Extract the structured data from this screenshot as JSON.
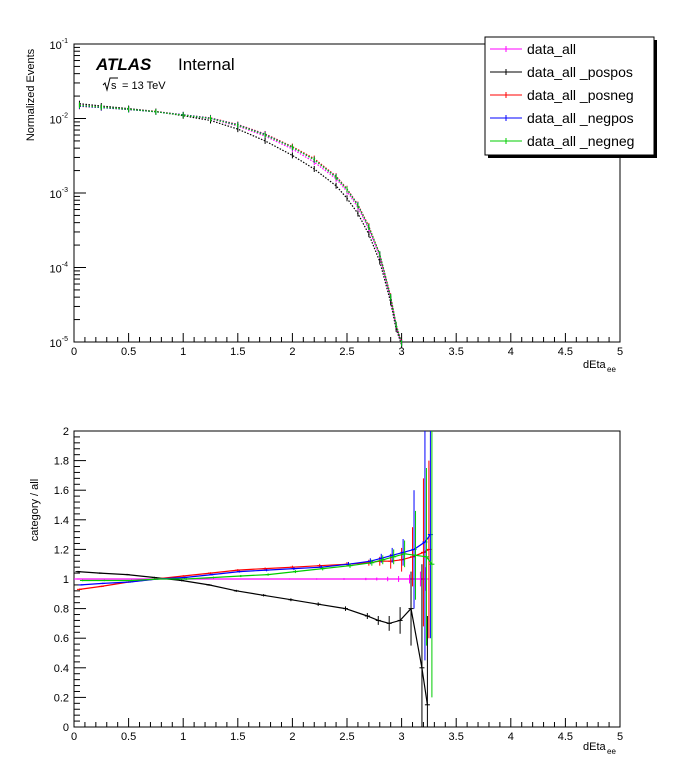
{
  "chart_data": [
    {
      "type": "scatter",
      "xlabel": "dEta",
      "xlabel_sub": "ee",
      "ylabel": "Normalized Events",
      "xlim": [
        0,
        5
      ],
      "ylim": [
        1e-05,
        0.1
      ],
      "yscale": "log",
      "x_ticks": [
        "0",
        "0.5",
        "1",
        "1.5",
        "2",
        "2.5",
        "3",
        "3.5",
        "4",
        "4.5",
        "5"
      ],
      "y_ticks": [
        {
          "base": "10",
          "exp": "-5",
          "value": 1e-05
        },
        {
          "base": "10",
          "exp": "-4",
          "value": 0.0001
        },
        {
          "base": "10",
          "exp": "-3",
          "value": 0.001
        },
        {
          "base": "10",
          "exp": "-2",
          "value": 0.01
        },
        {
          "base": "10",
          "exp": "-1",
          "value": 0.1
        }
      ],
      "annotation": {
        "experiment": "ATLAS",
        "status": "Internal",
        "energy_prefix": "s",
        "energy": "= 13 TeV"
      },
      "legend_position": "top-right",
      "x": [
        0.05,
        0.25,
        0.5,
        0.75,
        1.0,
        1.25,
        1.5,
        1.75,
        2.0,
        2.2,
        2.4,
        2.5,
        2.6,
        2.7,
        2.8,
        2.9,
        2.95,
        3.0
      ],
      "series": [
        {
          "name": "data_all",
          "color": "#ff00ff",
          "values": [
            0.0152,
            0.0143,
            0.0133,
            0.0123,
            0.0111,
            0.0099,
            0.0079,
            0.0058,
            0.0039,
            0.0026,
            0.00155,
            0.00105,
            0.00064,
            0.00033,
            0.00014,
            3.8e-05,
            1.6e-05,
            9.5e-06
          ]
        },
        {
          "name": "data_all _pospos",
          "color": "#000000",
          "values": [
            0.0158,
            0.0147,
            0.0136,
            0.0124,
            0.0109,
            0.0094,
            0.0072,
            0.005,
            0.0032,
            0.0021,
            0.00125,
            0.00085,
            0.00053,
            0.00028,
            0.00012,
            3.4e-05,
            1.5e-05,
            9.2e-06
          ]
        },
        {
          "name": "data_all _posneg",
          "color": "#ff0000",
          "values": [
            0.0146,
            0.014,
            0.0132,
            0.0124,
            0.0112,
            0.0102,
            0.0083,
            0.0062,
            0.0042,
            0.0029,
            0.00168,
            0.00114,
            0.0007,
            0.00036,
            0.00015,
            4.1e-05,
            1.7e-05,
            9.8e-06
          ]
        },
        {
          "name": "data_all _negpos",
          "color": "#0000ff",
          "values": [
            0.0147,
            0.014,
            0.0132,
            0.0123,
            0.0112,
            0.0101,
            0.0082,
            0.0061,
            0.0041,
            0.0028,
            0.00165,
            0.00112,
            0.00069,
            0.00035,
            0.00015,
            4e-05,
            1.7e-05,
            9.7e-06
          ]
        },
        {
          "name": "data_all _negneg",
          "color": "#00cc00",
          "values": [
            0.015,
            0.0142,
            0.0133,
            0.0123,
            0.0111,
            0.01,
            0.0081,
            0.006,
            0.0041,
            0.0028,
            0.00163,
            0.00111,
            0.00068,
            0.00035,
            0.00015,
            4e-05,
            1.7e-05,
            9.6e-06
          ]
        }
      ]
    },
    {
      "type": "scatter",
      "xlabel": "dEta",
      "xlabel_sub": "ee",
      "ylabel": "category / all",
      "xlim": [
        0,
        5
      ],
      "ylim": [
        0,
        2
      ],
      "x_ticks": [
        "0",
        "0.5",
        "1",
        "1.5",
        "2",
        "2.5",
        "3",
        "3.5",
        "4",
        "4.5",
        "5"
      ],
      "y_ticks": [
        "0",
        "0.2",
        "0.4",
        "0.6",
        "0.8",
        "1",
        "1.2",
        "1.4",
        "1.6",
        "1.8",
        "2"
      ],
      "x": [
        0.05,
        0.25,
        0.5,
        0.75,
        1.0,
        1.25,
        1.5,
        1.75,
        2.0,
        2.25,
        2.5,
        2.7,
        2.8,
        2.9,
        3.0,
        3.1,
        3.2,
        3.25
      ],
      "series": [
        {
          "name": "data_all",
          "color": "#ff00ff",
          "values": [
            1.0,
            1.0,
            1.0,
            1.0,
            1.0,
            1.0,
            1.0,
            1.0,
            1.0,
            1.0,
            1.0,
            1.0,
            1.0,
            1.0,
            1.0,
            1.0,
            1.0,
            1.0
          ],
          "errors": [
            0.003,
            0.003,
            0.003,
            0.003,
            0.003,
            0.003,
            0.003,
            0.003,
            0.004,
            0.005,
            0.006,
            0.008,
            0.01,
            0.015,
            0.02,
            0.03,
            0.05,
            0.08
          ]
        },
        {
          "name": "data_all _pospos",
          "color": "#000000",
          "values": [
            1.05,
            1.04,
            1.03,
            1.01,
            0.99,
            0.96,
            0.92,
            0.89,
            0.86,
            0.83,
            0.8,
            0.75,
            0.72,
            0.7,
            0.72,
            0.8,
            0.4,
            0.15
          ],
          "errors": [
            0.005,
            0.005,
            0.005,
            0.005,
            0.006,
            0.006,
            0.007,
            0.008,
            0.01,
            0.012,
            0.015,
            0.02,
            0.03,
            0.05,
            0.09,
            0.25,
            0.7,
            0.6
          ]
        },
        {
          "name": "data_all _posneg",
          "color": "#ff0000",
          "values": [
            0.93,
            0.95,
            0.98,
            1.0,
            1.02,
            1.04,
            1.06,
            1.07,
            1.08,
            1.09,
            1.1,
            1.11,
            1.12,
            1.12,
            1.13,
            1.15,
            1.18,
            1.2
          ],
          "errors": [
            0.005,
            0.005,
            0.005,
            0.005,
            0.006,
            0.006,
            0.007,
            0.008,
            0.01,
            0.012,
            0.015,
            0.02,
            0.03,
            0.05,
            0.08,
            0.2,
            0.5,
            0.6
          ]
        },
        {
          "name": "data_all _negpos",
          "color": "#0000ff",
          "values": [
            0.96,
            0.97,
            0.98,
            1.0,
            1.01,
            1.03,
            1.05,
            1.06,
            1.07,
            1.08,
            1.1,
            1.12,
            1.14,
            1.16,
            1.18,
            1.2,
            1.25,
            1.3
          ],
          "errors": [
            0.005,
            0.005,
            0.005,
            0.005,
            0.006,
            0.006,
            0.007,
            0.008,
            0.01,
            0.012,
            0.015,
            0.02,
            0.03,
            0.05,
            0.09,
            0.4,
            0.8,
            0.7
          ]
        },
        {
          "name": "data_all _negneg",
          "color": "#00cc00",
          "values": [
            0.99,
            0.99,
            0.99,
            1.0,
            1.0,
            1.01,
            1.02,
            1.03,
            1.05,
            1.07,
            1.09,
            1.11,
            1.13,
            1.15,
            1.17,
            1.16,
            1.15,
            1.1
          ],
          "errors": [
            0.005,
            0.005,
            0.005,
            0.005,
            0.006,
            0.006,
            0.007,
            0.008,
            0.01,
            0.012,
            0.015,
            0.02,
            0.03,
            0.05,
            0.09,
            0.3,
            0.6,
            0.9
          ]
        }
      ]
    }
  ]
}
